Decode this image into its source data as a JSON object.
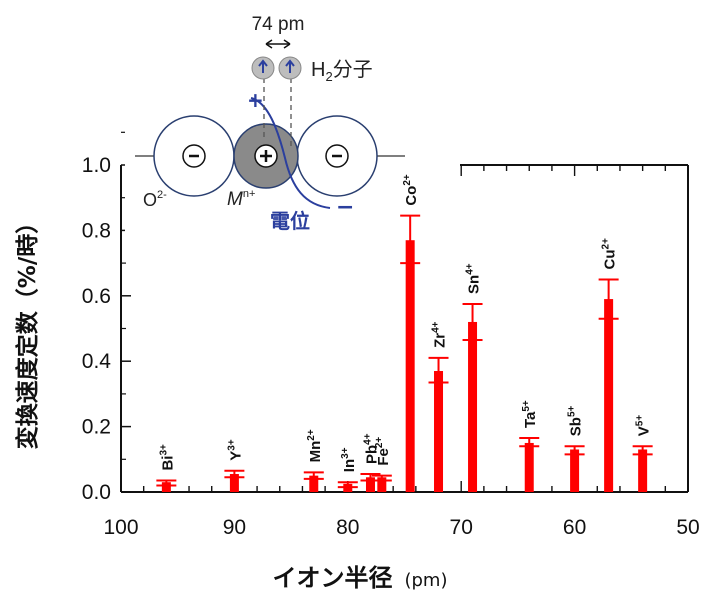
{
  "chart_data": {
    "type": "bar",
    "xlabel": "イオン半径",
    "xlabel_unit": "(pm)",
    "ylabel": "変換速度定数（%/時）",
    "xlim": [
      100,
      50
    ],
    "ylim": [
      0,
      1.0
    ],
    "x_ticks": [
      100,
      90,
      80,
      70,
      60,
      50
    ],
    "y_ticks": [
      0.0,
      0.2,
      0.4,
      0.6,
      0.8,
      1.0
    ],
    "bar_color": "#ff0000",
    "series": [
      {
        "values": [
          {
            "ion": "Bi",
            "charge": "3+",
            "radius": 96,
            "value": 0.03,
            "err_low": 0.02,
            "err_high": 0.035
          },
          {
            "ion": "Y",
            "charge": "3+",
            "radius": 90,
            "value": 0.055,
            "err_low": 0.045,
            "err_high": 0.065
          },
          {
            "ion": "Mn",
            "charge": "2+",
            "radius": 83,
            "value": 0.05,
            "err_low": 0.04,
            "err_high": 0.06
          },
          {
            "ion": "In",
            "charge": "3+",
            "radius": 80,
            "value": 0.025,
            "err_low": 0.015,
            "err_high": 0.03
          },
          {
            "ion": "Pb",
            "charge": "4+",
            "radius": 78,
            "value": 0.045,
            "err_low": 0.035,
            "err_high": 0.055
          },
          {
            "ion": "Fe",
            "charge": "2+",
            "radius": 77,
            "value": 0.045,
            "err_low": 0.035,
            "err_high": 0.05
          },
          {
            "ion": "Co",
            "charge": "2+",
            "radius": 74.5,
            "value": 0.77,
            "err_low": 0.7,
            "err_high": 0.845
          },
          {
            "ion": "Zr",
            "charge": "4+",
            "radius": 72,
            "value": 0.37,
            "err_low": 0.335,
            "err_high": 0.41
          },
          {
            "ion": "Sn",
            "charge": "4+",
            "radius": 69,
            "value": 0.52,
            "err_low": 0.465,
            "err_high": 0.575
          },
          {
            "ion": "Ta",
            "charge": "5+",
            "radius": 64,
            "value": 0.15,
            "err_low": 0.14,
            "err_high": 0.165
          },
          {
            "ion": "Sb",
            "charge": "5+",
            "radius": 60,
            "value": 0.13,
            "err_low": 0.115,
            "err_high": 0.14
          },
          {
            "ion": "Cu",
            "charge": "2+",
            "radius": 57,
            "value": 0.59,
            "err_low": 0.53,
            "err_high": 0.65
          },
          {
            "ion": "V",
            "charge": "5+",
            "radius": 54,
            "value": 0.13,
            "err_low": 0.115,
            "err_high": 0.14
          }
        ]
      }
    ]
  },
  "inset": {
    "distance_label": "74 pm",
    "molecule_main": "H",
    "molecule_sub": "2",
    "molecule_suffix": "分子",
    "oxide_label": "O",
    "oxide_charge": "2-",
    "metal_label": "M",
    "metal_charge": "n+",
    "potential_label": "電位",
    "plus_sign": "+",
    "minus_sign": "−",
    "potential_color": "#2b3f9e"
  }
}
